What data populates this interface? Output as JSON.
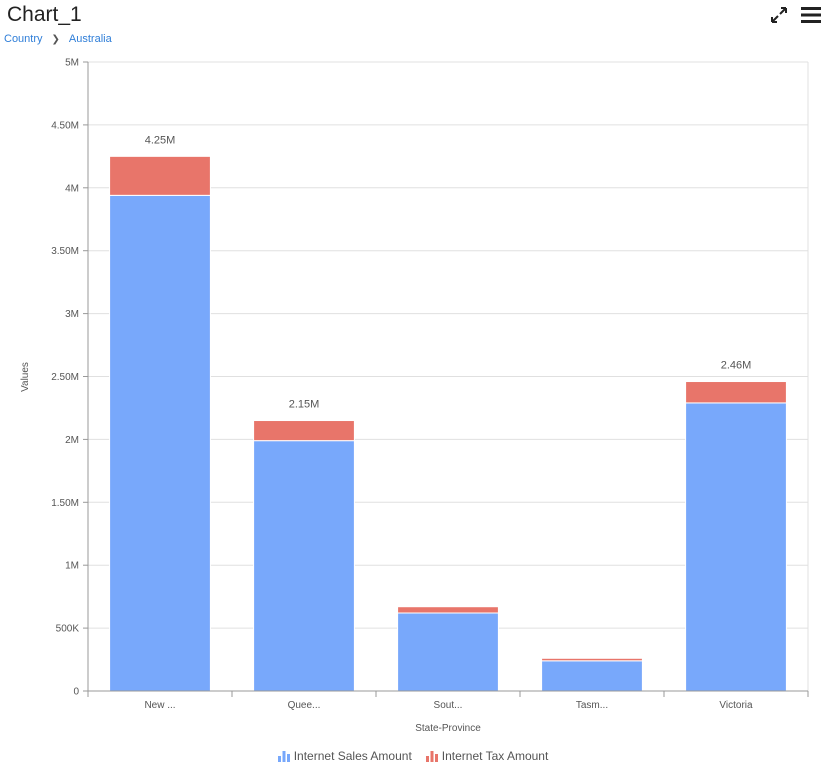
{
  "header": {
    "title": "Chart_1",
    "fullscreen_icon": "expand-arrows-icon",
    "menu_icon": "hamburger-menu-icon"
  },
  "breadcrumb": {
    "items": [
      "Country",
      "Australia"
    ],
    "separator": "❯"
  },
  "colors": {
    "sales": "#78a8fb",
    "tax": "#e8756a",
    "grid": "#e0e0e0",
    "axis": "#999999"
  },
  "chart_data": {
    "type": "bar",
    "stacked": true,
    "categories": [
      "New ...",
      "Quee...",
      "Sout...",
      "Tasm...",
      "Victoria"
    ],
    "series": [
      {
        "name": "Internet Sales Amount",
        "values": [
          3940000,
          1990000,
          620000,
          240000,
          2290000
        ]
      },
      {
        "name": "Internet Tax Amount",
        "values": [
          310000,
          160000,
          50000,
          20000,
          170000
        ]
      }
    ],
    "totals_labels": [
      "4.25M",
      "2.15M",
      "",
      "",
      "2.46M"
    ],
    "xlabel": "State-Province",
    "ylabel": "Values",
    "ylim": [
      0,
      5000000
    ],
    "yticks": [
      0,
      500000,
      1000000,
      1500000,
      2000000,
      2500000,
      3000000,
      3500000,
      4000000,
      4500000,
      5000000
    ],
    "ytick_labels": [
      "0",
      "500K",
      "1M",
      "1.50M",
      "2M",
      "2.50M",
      "3M",
      "3.50M",
      "4M",
      "4.50M",
      "5M"
    ],
    "grid": true,
    "legend_position": "bottom-center"
  }
}
